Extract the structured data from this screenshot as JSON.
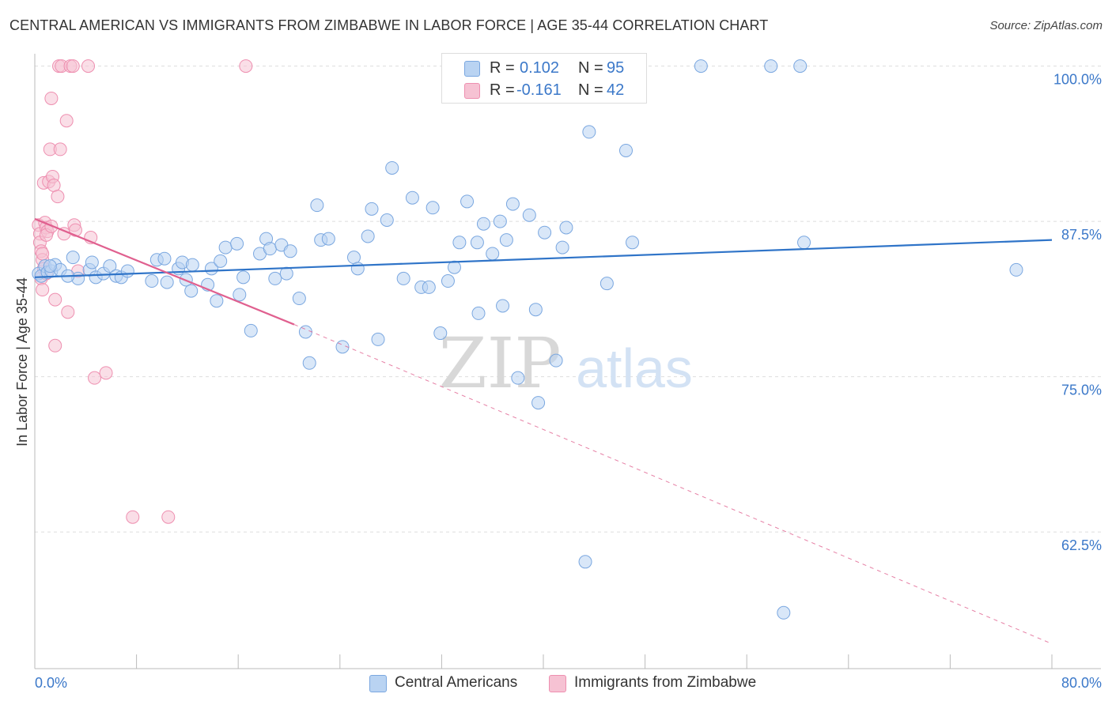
{
  "title": "CENTRAL AMERICAN VS IMMIGRANTS FROM ZIMBABWE IN LABOR FORCE | AGE 35-44 CORRELATION CHART",
  "source": "Source: ZipAtlas.com",
  "watermark": {
    "zip": "ZIP",
    "atlas": "atlas"
  },
  "colors": {
    "blue_fill": "#b9d3f2",
    "blue_stroke": "#7aa7e0",
    "blue_line": "#2f74c8",
    "pink_fill": "#f6c2d3",
    "pink_stroke": "#ee8fb0",
    "pink_line": "#e0608f",
    "axis_label": "#3b78c9",
    "grid": "#dddddd"
  },
  "legend": {
    "series1": {
      "r_label": "R =",
      "r_value": "0.102",
      "n_label": "N =",
      "n_value": "95"
    },
    "series2": {
      "r_label": "R =",
      "r_value": "-0.161",
      "n_label": "N =",
      "n_value": "42"
    }
  },
  "bottom_legend": {
    "series1": "Central Americans",
    "series2": "Immigrants from Zimbabwe"
  },
  "chart_data": {
    "type": "scatter",
    "title": "CENTRAL AMERICAN VS IMMIGRANTS FROM ZIMBABWE IN LABOR FORCE | AGE 35-44 CORRELATION CHART",
    "xlabel": "",
    "ylabel": "In Labor Force | Age 35-44",
    "xlim": [
      0,
      80
    ],
    "ylim": [
      51.5,
      101.5
    ],
    "x_tick_labels": [
      "0.0%",
      "80.0%"
    ],
    "y_ticks": [
      62.5,
      75.0,
      87.5,
      100.0
    ],
    "y_tick_labels": [
      "62.5%",
      "75.0%",
      "87.5%",
      "100.0%"
    ],
    "series": [
      {
        "name": "Central Americans",
        "r": 0.102,
        "n": 95,
        "trend": {
          "x": [
            0,
            80
          ],
          "y": [
            83.0,
            86.0
          ],
          "dashed_extension": false
        },
        "points": [
          [
            0.3,
            83.3
          ],
          [
            0.5,
            83.1
          ],
          [
            0.8,
            83.9
          ],
          [
            1.0,
            83.4
          ],
          [
            1.3,
            83.5
          ],
          [
            1.6,
            84.0
          ],
          [
            2.0,
            83.6
          ],
          [
            3.0,
            84.6
          ],
          [
            3.4,
            82.9
          ],
          [
            4.3,
            83.6
          ],
          [
            4.5,
            84.2
          ],
          [
            4.8,
            83.0
          ],
          [
            5.4,
            83.3
          ],
          [
            5.9,
            83.9
          ],
          [
            6.4,
            83.1
          ],
          [
            6.8,
            83.0
          ],
          [
            7.3,
            83.5
          ],
          [
            9.2,
            82.7
          ],
          [
            9.6,
            84.4
          ],
          [
            10.2,
            84.5
          ],
          [
            10.4,
            82.6
          ],
          [
            11.3,
            83.7
          ],
          [
            11.6,
            84.2
          ],
          [
            11.9,
            82.8
          ],
          [
            12.3,
            81.9
          ],
          [
            12.4,
            84.0
          ],
          [
            13.6,
            82.4
          ],
          [
            13.9,
            83.7
          ],
          [
            14.3,
            81.1
          ],
          [
            14.6,
            84.3
          ],
          [
            15.0,
            85.4
          ],
          [
            15.9,
            85.7
          ],
          [
            16.1,
            81.6
          ],
          [
            16.4,
            83.0
          ],
          [
            17.0,
            78.7
          ],
          [
            17.7,
            84.9
          ],
          [
            18.2,
            86.1
          ],
          [
            18.5,
            85.3
          ],
          [
            18.9,
            82.9
          ],
          [
            19.4,
            85.6
          ],
          [
            19.8,
            83.3
          ],
          [
            20.1,
            85.1
          ],
          [
            20.8,
            81.3
          ],
          [
            21.3,
            78.6
          ],
          [
            21.6,
            76.1
          ],
          [
            22.2,
            88.8
          ],
          [
            22.5,
            86.0
          ],
          [
            23.1,
            86.1
          ],
          [
            24.2,
            77.4
          ],
          [
            25.1,
            84.6
          ],
          [
            25.4,
            83.7
          ],
          [
            26.2,
            86.3
          ],
          [
            26.5,
            88.5
          ],
          [
            27.0,
            78.0
          ],
          [
            27.7,
            87.6
          ],
          [
            28.1,
            91.8
          ],
          [
            29.0,
            82.9
          ],
          [
            29.7,
            89.4
          ],
          [
            30.4,
            82.2
          ],
          [
            31.0,
            82.2
          ],
          [
            31.3,
            88.6
          ],
          [
            31.9,
            78.5
          ],
          [
            32.5,
            82.7
          ],
          [
            33.0,
            83.8
          ],
          [
            33.4,
            85.8
          ],
          [
            34.0,
            89.1
          ],
          [
            34.8,
            85.8
          ],
          [
            34.9,
            80.1
          ],
          [
            35.3,
            87.3
          ],
          [
            36.0,
            84.9
          ],
          [
            36.6,
            87.5
          ],
          [
            36.8,
            80.7
          ],
          [
            37.1,
            86.0
          ],
          [
            37.6,
            88.9
          ],
          [
            38.0,
            74.9
          ],
          [
            38.9,
            88.0
          ],
          [
            39.4,
            80.4
          ],
          [
            39.6,
            72.9
          ],
          [
            40.1,
            86.6
          ],
          [
            41.0,
            76.3
          ],
          [
            41.5,
            85.4
          ],
          [
            41.8,
            87.0
          ],
          [
            43.3,
            60.1
          ],
          [
            43.6,
            94.7
          ],
          [
            45.0,
            82.5
          ],
          [
            46.5,
            93.2
          ],
          [
            47.0,
            85.8
          ],
          [
            52.4,
            100.0
          ],
          [
            57.9,
            100.0
          ],
          [
            58.9,
            56.0
          ],
          [
            60.2,
            100.0
          ],
          [
            60.5,
            85.8
          ],
          [
            77.2,
            83.6
          ],
          [
            1.2,
            83.9
          ],
          [
            2.6,
            83.1
          ]
        ]
      },
      {
        "name": "Immigrants from Zimbabwe",
        "r": -0.161,
        "n": 42,
        "trend": {
          "x": [
            0,
            20.4
          ],
          "y": [
            87.7,
            79.2
          ],
          "dashed_extension": {
            "x": [
              20.4,
              80
            ],
            "y": [
              79.2,
              53.5
            ]
          }
        },
        "points": [
          [
            0.3,
            87.2
          ],
          [
            0.4,
            86.5
          ],
          [
            0.4,
            85.8
          ],
          [
            0.5,
            85.1
          ],
          [
            0.6,
            84.4
          ],
          [
            0.7,
            83.7
          ],
          [
            0.5,
            82.9
          ],
          [
            0.6,
            82.0
          ],
          [
            0.7,
            90.6
          ],
          [
            0.8,
            87.4
          ],
          [
            0.9,
            87.0
          ],
          [
            1.0,
            86.7
          ],
          [
            0.9,
            83.3
          ],
          [
            1.1,
            90.7
          ],
          [
            1.2,
            93.3
          ],
          [
            1.3,
            97.4
          ],
          [
            1.4,
            91.1
          ],
          [
            1.5,
            90.4
          ],
          [
            1.6,
            81.2
          ],
          [
            1.6,
            77.5
          ],
          [
            1.8,
            89.5
          ],
          [
            1.9,
            100.0
          ],
          [
            2.0,
            93.3
          ],
          [
            2.1,
            100.0
          ],
          [
            2.3,
            86.5
          ],
          [
            2.5,
            95.6
          ],
          [
            2.6,
            80.2
          ],
          [
            2.8,
            100.0
          ],
          [
            3.0,
            100.0
          ],
          [
            3.1,
            87.2
          ],
          [
            3.2,
            86.8
          ],
          [
            3.4,
            83.5
          ],
          [
            4.2,
            100.0
          ],
          [
            4.4,
            86.2
          ],
          [
            4.7,
            74.9
          ],
          [
            5.6,
            75.3
          ],
          [
            7.7,
            63.7
          ],
          [
            10.5,
            63.7
          ],
          [
            16.6,
            100.0
          ],
          [
            0.9,
            86.4
          ],
          [
            1.3,
            87.1
          ],
          [
            0.6,
            84.9
          ]
        ]
      }
    ],
    "legend_position": "top-center"
  }
}
